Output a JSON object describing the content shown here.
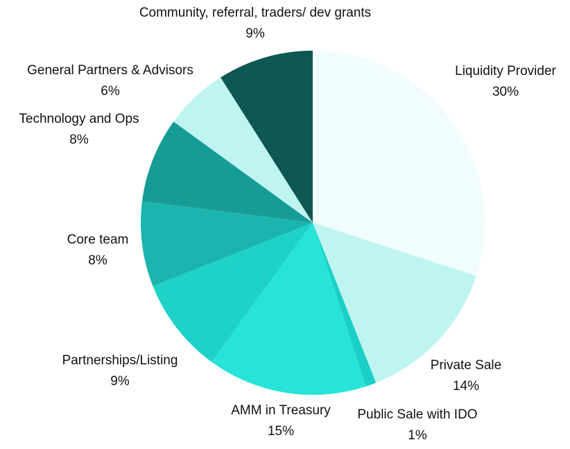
{
  "chart_data": {
    "type": "pie",
    "title": "",
    "slices": [
      {
        "label": "Liquidity Provider",
        "value": 30,
        "value_label": "30%",
        "color": "#F1FCFC"
      },
      {
        "label": "Private Sale",
        "value": 14,
        "value_label": "14%",
        "color": "#BFF5F1"
      },
      {
        "label": "Public Sale with IDO",
        "value": 1,
        "value_label": "1%",
        "color": "#1ACFC6"
      },
      {
        "label": "AMM in Treasury",
        "value": 15,
        "value_label": "15%",
        "color": "#28E4D8"
      },
      {
        "label": "Partnerships/Listing",
        "value": 9,
        "value_label": "9%",
        "color": "#1ED2C8"
      },
      {
        "label": "Core team",
        "value": 8,
        "value_label": "8%",
        "color": "#1BB4AE"
      },
      {
        "label": "Technology and Ops",
        "value": 8,
        "value_label": "8%",
        "color": "#169C96"
      },
      {
        "label": "General Partners & Advisors",
        "value": 6,
        "value_label": "6%",
        "color": "#BFF5F1"
      },
      {
        "label": "Community, referral, traders/ dev grants",
        "value": 9,
        "value_label": "9%",
        "color": "#0E5752"
      }
    ]
  }
}
